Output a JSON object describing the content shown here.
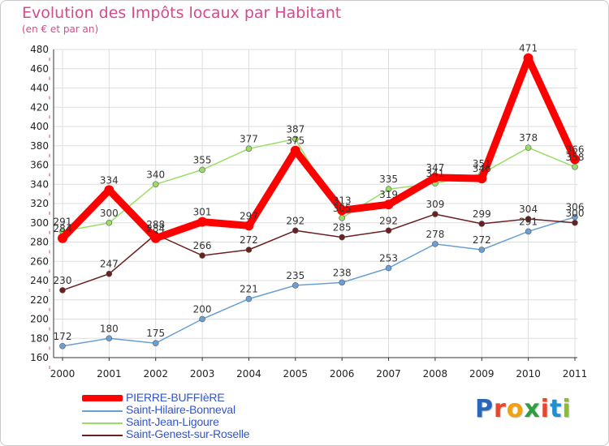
{
  "chart_data": {
    "type": "line",
    "title": "Evolution des Impôts locaux par Habitant",
    "subtitle": "(en € et par an)",
    "categories": [
      "2000",
      "2001",
      "2002",
      "2003",
      "2004",
      "2005",
      "2006",
      "2007",
      "2008",
      "2009",
      "2010",
      "2011"
    ],
    "ylim": [
      160,
      480
    ],
    "yticks": [
      160,
      180,
      200,
      220,
      240,
      260,
      280,
      300,
      320,
      340,
      360,
      380,
      400,
      420,
      440,
      460,
      480
    ],
    "grid": true,
    "series": [
      {
        "name": "PIERRE-BUFFIèRE",
        "color": "#ff0000",
        "emphasis": true,
        "values": [
          284,
          334,
          284,
          301,
          297,
          375,
          313,
          319,
          347,
          346,
          471,
          366
        ]
      },
      {
        "name": "Saint-Hilaire-Bonneval",
        "color": "#6a9fd4",
        "values": [
          172,
          180,
          175,
          200,
          221,
          235,
          238,
          253,
          278,
          272,
          291,
          306
        ]
      },
      {
        "name": "Saint-Jean-Ligoure",
        "color": "#99dd66",
        "values": [
          291,
          300,
          340,
          355,
          377,
          387,
          305,
          335,
          341,
          351,
          378,
          358
        ]
      },
      {
        "name": "Saint-Genest-sur-Roselle",
        "color": "#6b2020",
        "values": [
          230,
          247,
          288,
          266,
          272,
          292,
          285,
          292,
          309,
          299,
          304,
          300
        ]
      }
    ]
  },
  "legend": {
    "items": [
      {
        "label": "PIERRE-BUFFIèRE",
        "color": "#ff0000"
      },
      {
        "label": "Saint-Hilaire-Bonneval",
        "color": "#6a9fd4"
      },
      {
        "label": "Saint-Jean-Ligoure",
        "color": "#99dd66"
      },
      {
        "label": "Saint-Genest-sur-Roselle",
        "color": "#6b2020"
      }
    ]
  },
  "logo": {
    "letters": [
      "P",
      "r",
      "o",
      "x",
      "i",
      "t",
      "i"
    ],
    "colors": [
      "#2a66b8",
      "#e8472b",
      "#f2a20c",
      "#2f9e3e",
      "#e8472b",
      "#1f8fd1",
      "#8cbf26"
    ]
  }
}
